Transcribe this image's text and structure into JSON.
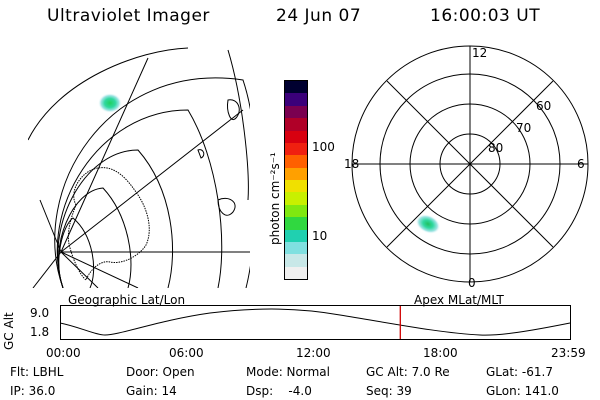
{
  "header": {
    "instrument": "Ultraviolet Imager",
    "date": "24 Jun 07",
    "time": "16:00:03 UT"
  },
  "colorbar": {
    "unit_label": "photon cm⁻²s⁻¹",
    "tick_labels": [
      "100",
      "10"
    ],
    "colors": [
      "#000030",
      "#3b007a",
      "#7a0050",
      "#b00028",
      "#d80010",
      "#f02010",
      "#ff6000",
      "#ffa000",
      "#f0e000",
      "#c8f000",
      "#80e810",
      "#30d840",
      "#20d0b0",
      "#80e0e0",
      "#c8e8e8",
      "#f0f0f0"
    ]
  },
  "polar_plot": {
    "mlt_labels": {
      "top": "12",
      "left": "18",
      "right": "6",
      "bottom": "0"
    },
    "lat_labels": [
      "60",
      "70",
      "80"
    ]
  },
  "panel_labels": {
    "left": "Geographic Lat/Lon",
    "right": "Apex MLat/MLT"
  },
  "alt_plot": {
    "ylabel": "GC Alt",
    "y_ticks": [
      "9.0",
      "1.8"
    ],
    "x_ticks": [
      "00:00",
      "06:00",
      "12:00",
      "18:00",
      "23:59"
    ],
    "marker_time": "16:00:03",
    "marker_color": "#d00000"
  },
  "status": {
    "filter": "Flt: LBHL",
    "door": "Door: Open",
    "mode": "Mode: Normal",
    "gc_alt": "GC Alt: 7.0 Re",
    "glat": "GLat: -61.7",
    "ip": "IP: 36.0",
    "gain": "Gain: 14",
    "dsp": "Dsp:    -4.0",
    "seq": "Seq: 39",
    "glon": "GLon: 141.0"
  }
}
